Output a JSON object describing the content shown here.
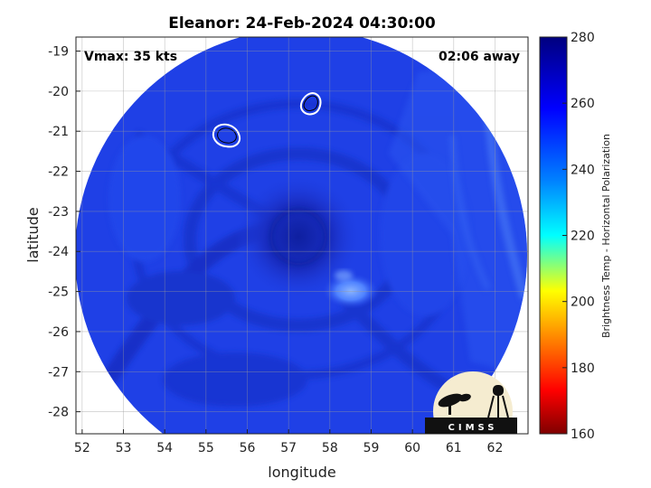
{
  "title": "Eleanor: 24-Feb-2024 04:30:00",
  "annotations": {
    "vmax": "Vmax: 35 kts",
    "away": "02:06 away"
  },
  "axes": {
    "xlabel": "longitude",
    "ylabel": "latitude",
    "xlim": [
      51.85,
      62.8
    ],
    "ylim": [
      -28.55,
      -18.65
    ],
    "xticks": [
      "52",
      "53",
      "54",
      "55",
      "56",
      "57",
      "58",
      "59",
      "60",
      "61",
      "62"
    ],
    "yticks": [
      "-19",
      "-20",
      "-21",
      "-22",
      "-23",
      "-24",
      "-25",
      "-26",
      "-27",
      "-28"
    ],
    "grid": true
  },
  "colorbar": {
    "label": "Brightness Temp - Horizontal Polarization",
    "range": [
      160,
      280
    ],
    "ticks": [
      "160",
      "180",
      "200",
      "220",
      "240",
      "260",
      "280"
    ],
    "colormap": "jet",
    "colors": [
      "#7f0000",
      "#ff0000",
      "#ffff00",
      "#00ffff",
      "#0000ff",
      "#00007f"
    ]
  },
  "swath": {
    "center": [
      57.35,
      -23.6
    ],
    "base_color": "#1f40e6",
    "cold_contours_lonlat": [
      [
        55.6,
        -21.1
      ],
      [
        57.55,
        -20.3
      ]
    ],
    "warm_patch_lonlat": [
      58.6,
      -25.1
    ]
  },
  "logo": {
    "text": "CIMSS"
  }
}
